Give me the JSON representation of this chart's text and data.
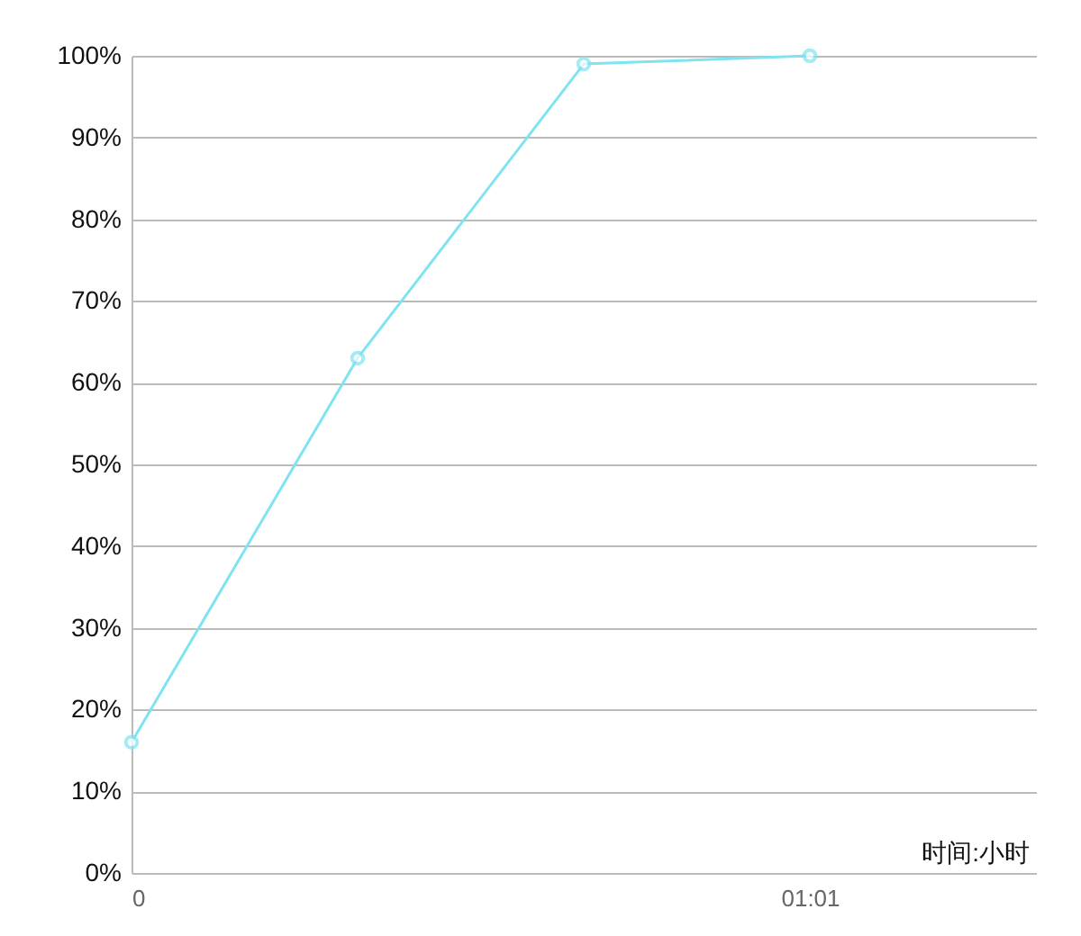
{
  "chart_data": {
    "type": "line",
    "categories": [
      "0",
      null,
      null,
      "01:01"
    ],
    "xlabel": "时间:小时",
    "series": [
      {
        "color": "#7fe3f0",
        "values": [
          16,
          63,
          99,
          100
        ]
      }
    ],
    "ylim": [
      0,
      100
    ],
    "yticks": [
      {
        "value": 0,
        "label": "0%"
      },
      {
        "value": 10,
        "label": "10%"
      },
      {
        "value": 20,
        "label": "20%"
      },
      {
        "value": 30,
        "label": "30%"
      },
      {
        "value": 40,
        "label": "40%"
      },
      {
        "value": 50,
        "label": "50%"
      },
      {
        "value": 60,
        "label": "60%"
      },
      {
        "value": 70,
        "label": "70%"
      },
      {
        "value": 80,
        "label": "80%"
      },
      {
        "value": 90,
        "label": "90%"
      },
      {
        "value": 100,
        "label": "100%"
      }
    ],
    "grid": "y",
    "marker": "circle",
    "line_style": "solid",
    "legend": false
  }
}
